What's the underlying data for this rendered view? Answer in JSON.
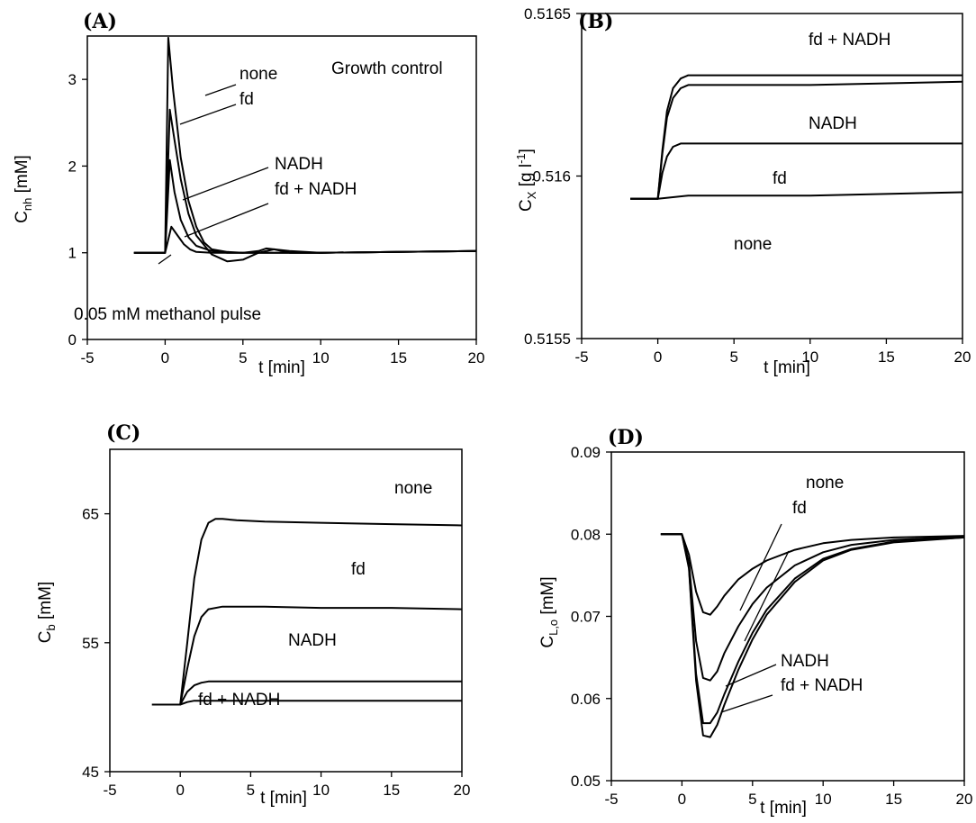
{
  "chart_data": [
    {
      "type": "line",
      "panel": "(A)",
      "xlabel": "t [min]",
      "ylabel": {
        "main": "C",
        "sub": "nh",
        "rest": " [mM]"
      },
      "xlim": [
        -5,
        20
      ],
      "ylim": [
        0,
        3.5
      ],
      "xticks": [
        "-5",
        "0",
        "5",
        "10",
        "15",
        "20"
      ],
      "yticks": [
        "0",
        "1",
        "2",
        "3"
      ],
      "annotations": [
        "none",
        "fd",
        "NADH",
        "fd + NADH",
        "Growth control",
        "0.05 mM methanol pulse"
      ],
      "series": [
        {
          "name": "none",
          "x": [
            -2,
            0,
            0.2,
            0.5,
            1,
            1.5,
            2,
            2.5,
            3,
            4,
            5,
            6,
            7,
            8,
            10,
            15,
            20
          ],
          "y": [
            1.0,
            1.0,
            3.48,
            2.9,
            2.1,
            1.6,
            1.3,
            1.12,
            1.04,
            1.01,
            1.0,
            1.0,
            1.0,
            1.0,
            1.0,
            1.01,
            1.02
          ]
        },
        {
          "name": "fd",
          "x": [
            -2,
            0,
            0.3,
            0.6,
            1,
            1.5,
            2,
            3,
            4,
            5,
            6,
            7,
            8,
            10,
            15,
            20
          ],
          "y": [
            1.0,
            1.0,
            2.65,
            2.3,
            1.85,
            1.45,
            1.2,
            0.98,
            0.9,
            0.92,
            1.0,
            1.04,
            1.02,
            1.0,
            1.01,
            1.02
          ]
        },
        {
          "name": "NADH",
          "x": [
            -2,
            0,
            0.3,
            0.6,
            1,
            1.5,
            2,
            3,
            4,
            5,
            6,
            6.5,
            7,
            8,
            10,
            15,
            20
          ],
          "y": [
            1.0,
            1.0,
            2.07,
            1.7,
            1.38,
            1.18,
            1.08,
            1.02,
            1.0,
            1.0,
            1.02,
            1.05,
            1.04,
            1.0,
            1.0,
            1.01,
            1.02
          ]
        },
        {
          "name": "fd + NADH",
          "x": [
            -2,
            0,
            0.4,
            0.8,
            1.2,
            1.6,
            2,
            3,
            5,
            8,
            10,
            15,
            20
          ],
          "y": [
            1.0,
            1.0,
            1.3,
            1.2,
            1.1,
            1.04,
            1.01,
            1.0,
            1.0,
            1.0,
            1.0,
            1.01,
            1.02
          ]
        }
      ]
    },
    {
      "type": "line",
      "panel": "(B)",
      "xlabel": "t [min]",
      "ylabel": {
        "main": "C",
        "sub": "X",
        "rest": " [g l",
        "sup": "-1",
        "close": "]"
      },
      "xlim": [
        -5,
        20
      ],
      "ylim": [
        0.5155,
        0.5165
      ],
      "xticks": [
        "-5",
        "0",
        "5",
        "10",
        "15",
        "20"
      ],
      "yticks": [
        "0.5155",
        "0.516",
        "0.5165"
      ],
      "annotations": [
        "fd + NADH",
        "NADH",
        "fd",
        "none"
      ],
      "series": [
        {
          "name": "fd + NADH",
          "x": [
            -1.8,
            0,
            0.3,
            0.6,
            1,
            1.5,
            2,
            3,
            5,
            10,
            20
          ],
          "y": [
            0.51593,
            0.51593,
            0.51608,
            0.5162,
            0.51627,
            0.5163,
            0.51631,
            0.51631,
            0.51631,
            0.51631,
            0.51631
          ]
        },
        {
          "name": "NADH",
          "x": [
            -1.8,
            0,
            0.3,
            0.6,
            1,
            1.5,
            2,
            3,
            5,
            10,
            20
          ],
          "y": [
            0.51593,
            0.51593,
            0.51607,
            0.51618,
            0.51624,
            0.51627,
            0.51628,
            0.51628,
            0.51628,
            0.51628,
            0.51629
          ]
        },
        {
          "name": "fd",
          "x": [
            -1.8,
            0,
            0.3,
            0.6,
            1,
            1.5,
            2,
            3,
            5,
            10,
            20
          ],
          "y": [
            0.51593,
            0.51593,
            0.51601,
            0.51606,
            0.51609,
            0.5161,
            0.5161,
            0.5161,
            0.5161,
            0.5161,
            0.5161
          ]
        },
        {
          "name": "none",
          "x": [
            -1.8,
            0,
            2,
            5,
            10,
            20
          ],
          "y": [
            0.51593,
            0.51593,
            0.51594,
            0.51594,
            0.51594,
            0.51595
          ]
        }
      ]
    },
    {
      "type": "line",
      "panel": "(C)",
      "xlabel": "t [min]",
      "ylabel": {
        "main": "C",
        "sub": "b",
        "rest": " [mM]"
      },
      "xlim": [
        -5,
        20
      ],
      "ylim": [
        45,
        70
      ],
      "xticks": [
        "-5",
        "0",
        "5",
        "10",
        "15",
        "20"
      ],
      "yticks": [
        "45",
        "55",
        "65"
      ],
      "annotations": [
        "none",
        "fd",
        "NADH",
        "fd + NADH"
      ],
      "series": [
        {
          "name": "none",
          "x": [
            -2,
            0,
            0.5,
            1,
            1.5,
            2,
            2.5,
            3,
            4,
            6,
            10,
            15,
            20
          ],
          "y": [
            50.2,
            50.2,
            55,
            60,
            63,
            64.3,
            64.6,
            64.6,
            64.5,
            64.4,
            64.3,
            64.2,
            64.1
          ]
        },
        {
          "name": "fd",
          "x": [
            -2,
            0,
            0.5,
            1,
            1.5,
            2,
            3,
            4,
            6,
            10,
            15,
            20
          ],
          "y": [
            50.2,
            50.2,
            53,
            55.5,
            57,
            57.6,
            57.8,
            57.8,
            57.8,
            57.7,
            57.7,
            57.6
          ]
        },
        {
          "name": "NADH",
          "x": [
            -2,
            0,
            0.5,
            1,
            1.5,
            2,
            4,
            10,
            20
          ],
          "y": [
            50.2,
            50.2,
            51.2,
            51.7,
            51.9,
            52.0,
            52.0,
            52.0,
            52.0
          ]
        },
        {
          "name": "fd + NADH",
          "x": [
            -2,
            0,
            0.5,
            1,
            2,
            5,
            10,
            20
          ],
          "y": [
            50.2,
            50.2,
            50.4,
            50.5,
            50.5,
            50.5,
            50.5,
            50.5
          ]
        }
      ]
    },
    {
      "type": "line",
      "panel": "(D)",
      "xlabel": "t [min]",
      "ylabel": {
        "main": "C",
        "sub": "L,o",
        "rest": " [mM]"
      },
      "xlim": [
        -5,
        20
      ],
      "ylim": [
        0.05,
        0.09
      ],
      "xticks": [
        "-5",
        "0",
        "5",
        "10",
        "15",
        "20"
      ],
      "yticks": [
        "0.05",
        "0.06",
        "0.07",
        "0.08",
        "0.09"
      ],
      "annotations": [
        "none",
        "fd",
        "NADH",
        "fd + NADH"
      ],
      "series": [
        {
          "name": "none",
          "x": [
            -1.5,
            0,
            0.5,
            1,
            1.5,
            2,
            2.5,
            3,
            4,
            5,
            6,
            8,
            10,
            12,
            15,
            20
          ],
          "y": [
            0.08,
            0.08,
            0.0775,
            0.073,
            0.0705,
            0.0702,
            0.0712,
            0.0725,
            0.0745,
            0.0758,
            0.0768,
            0.0781,
            0.0789,
            0.0793,
            0.0796,
            0.0798
          ]
        },
        {
          "name": "fd",
          "x": [
            -1.5,
            0,
            0.5,
            1,
            1.5,
            2,
            2.5,
            3,
            4,
            5,
            6,
            8,
            10,
            12,
            15,
            20
          ],
          "y": [
            0.08,
            0.08,
            0.0765,
            0.067,
            0.0625,
            0.0622,
            0.0633,
            0.0655,
            0.0688,
            0.0715,
            0.0735,
            0.0762,
            0.0778,
            0.0787,
            0.0793,
            0.0797
          ]
        },
        {
          "name": "NADH",
          "x": [
            -1.5,
            0,
            0.5,
            1,
            1.5,
            2,
            2.5,
            3,
            4,
            5,
            6,
            8,
            10,
            12,
            15,
            20
          ],
          "y": [
            0.08,
            0.08,
            0.076,
            0.063,
            0.057,
            0.057,
            0.0583,
            0.0605,
            0.0645,
            0.068,
            0.0708,
            0.0746,
            0.077,
            0.0782,
            0.0791,
            0.0796
          ]
        },
        {
          "name": "fd + NADH",
          "x": [
            -1.5,
            0,
            0.5,
            1,
            1.5,
            2,
            2.5,
            3,
            4,
            5,
            6,
            8,
            10,
            12,
            15,
            20
          ],
          "y": [
            0.08,
            0.08,
            0.0758,
            0.0622,
            0.0555,
            0.0553,
            0.0568,
            0.0592,
            0.0635,
            0.0672,
            0.0702,
            0.0742,
            0.0768,
            0.0781,
            0.079,
            0.0796
          ]
        }
      ]
    }
  ]
}
